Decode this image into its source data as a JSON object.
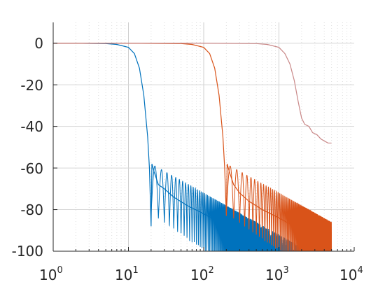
{
  "chart_data": {
    "type": "line",
    "title": "",
    "xlabel": "",
    "ylabel": "",
    "xscale": "log",
    "xlim": [
      1,
      10000
    ],
    "ylim": [
      -100,
      10
    ],
    "grid": "on (major and minor, dotted)",
    "legend": "none",
    "xticks": [
      {
        "base": "10",
        "exp": "0"
      },
      {
        "base": "10",
        "exp": "1"
      },
      {
        "base": "10",
        "exp": "2"
      },
      {
        "base": "10",
        "exp": "3"
      },
      {
        "base": "10",
        "exp": "4"
      }
    ],
    "yticks": [
      "0",
      "-20",
      "-40",
      "-60",
      "-80",
      "-100"
    ],
    "series": [
      {
        "color": "#0072BD",
        "cutoff": 10,
        "x": [
          1,
          2,
          5,
          7,
          10,
          12,
          14,
          16,
          18,
          19,
          20,
          20.5,
          22,
          25,
          30,
          40,
          60,
          100,
          200,
          500,
          1000,
          5000
        ],
        "y": [
          0,
          0,
          -0.2,
          -0.6,
          -2,
          -5,
          -12,
          -25,
          -45,
          -60,
          -88,
          -58,
          -62,
          -68,
          -70,
          -74,
          -78,
          -82,
          -88,
          -95,
          -100,
          -100
        ]
      },
      {
        "color": "#D95319",
        "cutoff": 100,
        "x": [
          1,
          10,
          50,
          70,
          100,
          120,
          140,
          160,
          180,
          190,
          200,
          205,
          220,
          250,
          300,
          400,
          600,
          1000,
          2000,
          5000
        ],
        "y": [
          0,
          0,
          -0.2,
          -0.6,
          -2,
          -5,
          -12,
          -25,
          -45,
          -60,
          -83,
          -58,
          -62,
          -68,
          -72,
          -76,
          -80,
          -84,
          -90,
          -94
        ]
      },
      {
        "color": "#C98888",
        "cutoff": 1000,
        "x": [
          1,
          100,
          500,
          700,
          1000,
          1200,
          1400,
          1600,
          1800,
          2000,
          2200,
          2500,
          2800,
          3200,
          3600,
          4000,
          4500,
          5000
        ],
        "y": [
          0,
          0,
          -0.2,
          -0.6,
          -2,
          -5,
          -10,
          -18,
          -28,
          -36,
          -39,
          -40,
          -43,
          -44,
          -46,
          -47,
          -48,
          -48
        ]
      }
    ]
  }
}
